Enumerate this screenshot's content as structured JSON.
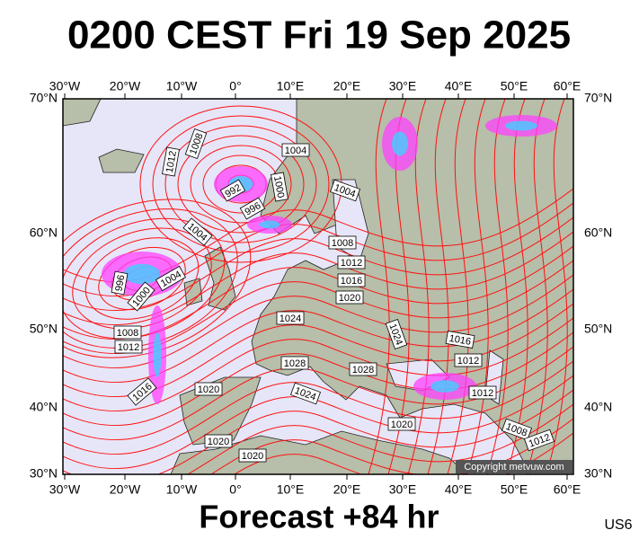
{
  "header": {
    "title": "0200 CEST Fri 19 Sep 2025"
  },
  "map": {
    "longitude_labels": [
      "30°W",
      "20°W",
      "10°W",
      "0°",
      "10°E",
      "20°E",
      "30°E",
      "40°E",
      "50°E",
      "60°E"
    ],
    "latitude_labels": [
      "70°N",
      "60°N",
      "50°N",
      "40°N",
      "30°N"
    ],
    "isobar_labels": [
      "1008",
      "1012",
      "992",
      "996",
      "1000",
      "1004",
      "1004",
      "1004",
      "996",
      "1000",
      "1004",
      "1008",
      "1012",
      "1016",
      "1008",
      "1012",
      "1016",
      "1020",
      "1024",
      "1024",
      "1028",
      "1028",
      "1024",
      "1020",
      "1020",
      "1020",
      "1020",
      "1016",
      "1012",
      "1012",
      "1008",
      "1012"
    ],
    "copyright": "Copyright metvuw.com"
  },
  "footer": {
    "forecast": "Forecast +84 hr",
    "code": "US6"
  }
}
